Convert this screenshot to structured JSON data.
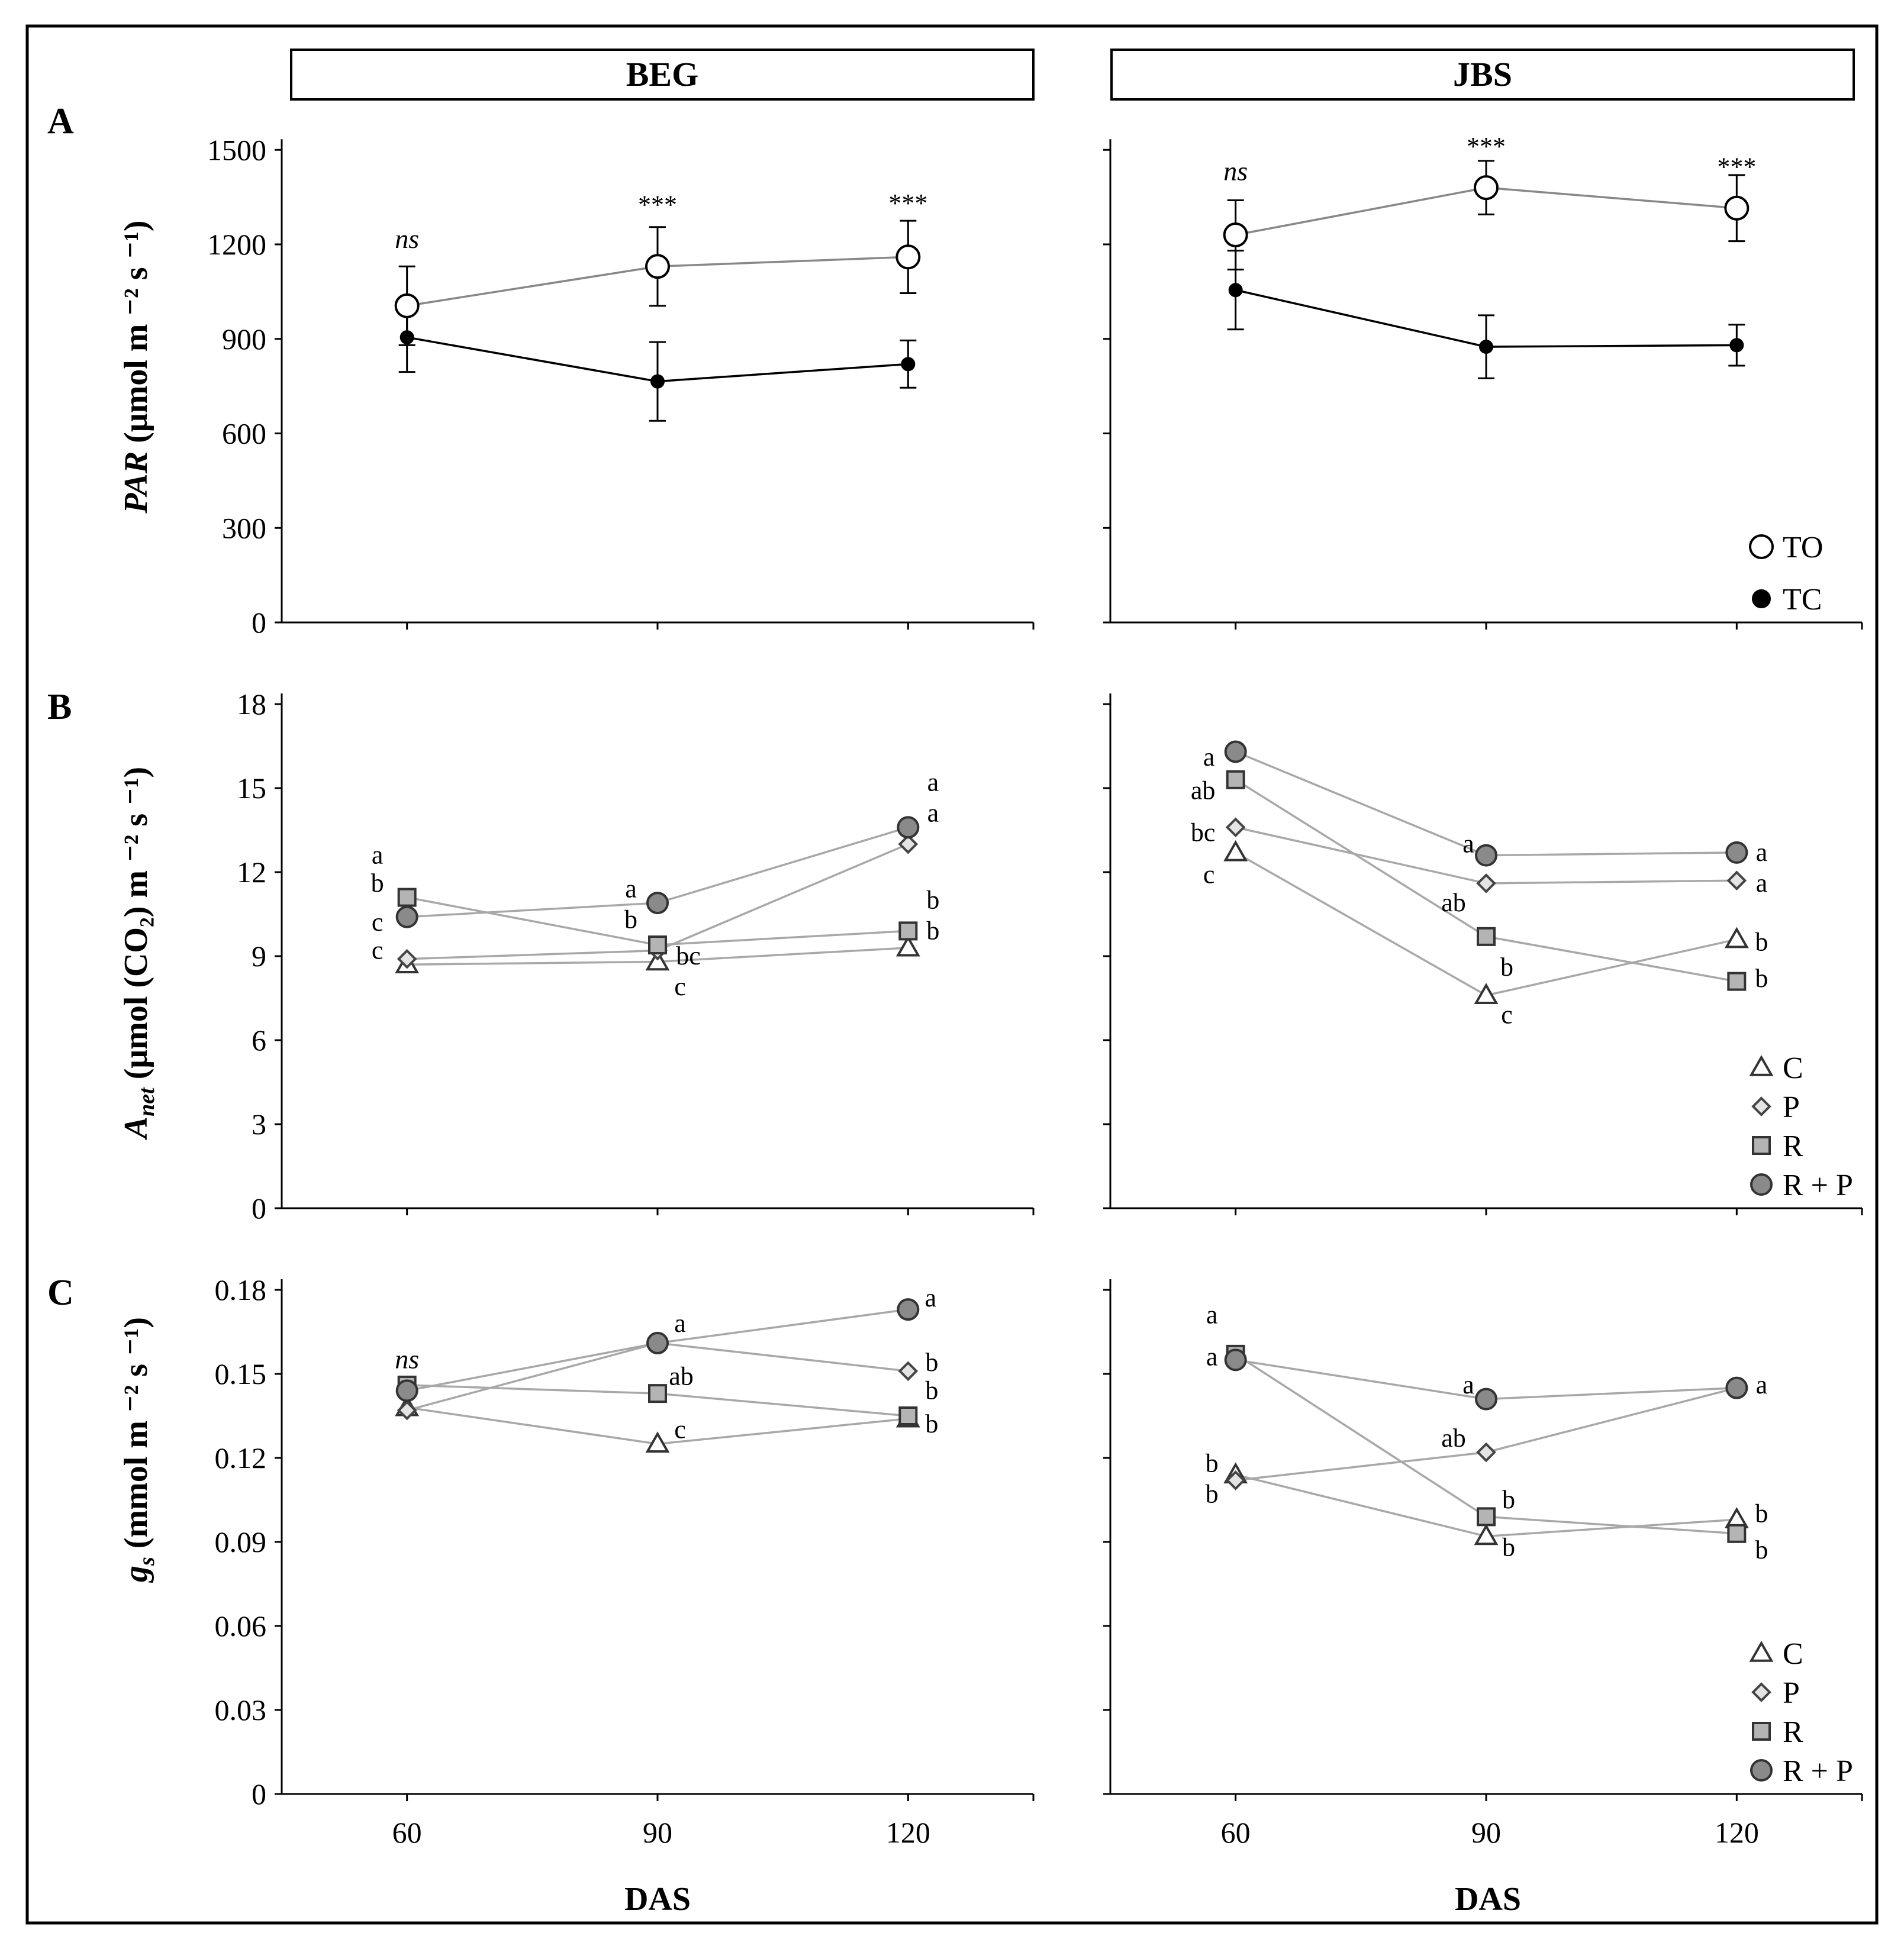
{
  "figure": {
    "columns": [
      "BEG",
      "JBS"
    ],
    "panel_letters": [
      "A",
      "B",
      "C"
    ],
    "x_title": "DAS",
    "y_titles": [
      {
        "base": "PAR",
        "rest": " (μmol m ⁻² s ⁻¹)"
      },
      {
        "base": "A",
        "sub": "net",
        "rest": " (μmol (CO₂) m ⁻² s ⁻¹)"
      },
      {
        "base": "g",
        "sub": "s",
        "rest": " (mmol m ⁻² s ⁻¹)"
      }
    ]
  },
  "colors": {
    "to_line": "#888888",
    "tc_line": "#000000",
    "treat_line": "#a8a8a8",
    "marker_grey": "#b4b4b4",
    "marker_dark": "#8a8a8a"
  },
  "chart_data": [
    {
      "id": "A-BEG",
      "type": "line",
      "row": 0,
      "col": 0,
      "x": [
        60,
        90,
        120
      ],
      "xlim": [
        45,
        135
      ],
      "ylim": [
        0,
        1600
      ],
      "yticks": [
        0,
        300,
        600,
        900,
        1200,
        1500
      ],
      "ytick_labels": [
        "0",
        "300",
        "600",
        "900",
        "1200",
        "1500"
      ],
      "series": [
        {
          "name": "TO",
          "marker": "circle-open",
          "size": "big",
          "line": "to_line",
          "values": [
            1005,
            1130,
            1160
          ],
          "errors": [
            125,
            125,
            115
          ]
        },
        {
          "name": "TC",
          "marker": "circle-filled",
          "size": "small",
          "line": "tc_line",
          "values": [
            905,
            765,
            820
          ],
          "errors": [
            110,
            125,
            75
          ]
        }
      ],
      "annotations": [
        {
          "x": 60,
          "y": 1215,
          "text": "ns",
          "style": "italic"
        },
        {
          "x": 90,
          "y": 1325,
          "text": "***",
          "style": "star"
        },
        {
          "x": 120,
          "y": 1330,
          "text": "***",
          "style": "star"
        }
      ]
    },
    {
      "id": "A-JBS",
      "type": "line",
      "row": 0,
      "col": 1,
      "x": [
        60,
        90,
        120
      ],
      "xlim": [
        45,
        135
      ],
      "ylim": [
        0,
        1600
      ],
      "yticks": [
        0,
        300,
        600,
        900,
        1200,
        1500
      ],
      "ytick_labels": [],
      "series": [
        {
          "name": "TO",
          "marker": "circle-open",
          "size": "big",
          "line": "to_line",
          "values": [
            1230,
            1380,
            1315
          ],
          "errors": [
            110,
            85,
            105
          ]
        },
        {
          "name": "TC",
          "marker": "circle-filled",
          "size": "small",
          "line": "tc_line",
          "values": [
            1055,
            875,
            880
          ],
          "errors": [
            125,
            100,
            65
          ]
        }
      ],
      "annotations": [
        {
          "x": 60,
          "y": 1430,
          "text": "ns",
          "style": "italic"
        },
        {
          "x": 90,
          "y": 1510,
          "text": "***",
          "style": "star"
        },
        {
          "x": 120,
          "y": 1445,
          "text": "***",
          "style": "star"
        }
      ],
      "legend": {
        "position": "bottom-right",
        "entries": [
          {
            "label": "TO",
            "marker": "circle-open"
          },
          {
            "label": "TC",
            "marker": "circle-filled"
          }
        ]
      }
    },
    {
      "id": "B-BEG",
      "type": "line",
      "row": 1,
      "col": 0,
      "x": [
        60,
        90,
        120
      ],
      "xlim": [
        45,
        135
      ],
      "ylim": [
        0,
        18
      ],
      "yticks": [
        0,
        3,
        6,
        9,
        12,
        15,
        18
      ],
      "ytick_labels": [
        "0",
        "3",
        "6",
        "9",
        "12",
        "15",
        "18"
      ],
      "series": [
        {
          "name": "C",
          "marker": "triangle",
          "values": [
            8.7,
            8.8,
            9.3
          ]
        },
        {
          "name": "P",
          "marker": "diamond",
          "values": [
            8.9,
            9.2,
            13.0
          ]
        },
        {
          "name": "R",
          "marker": "square",
          "values": [
            11.1,
            9.4,
            9.9
          ]
        },
        {
          "name": "R + P",
          "marker": "circle-grey",
          "values": [
            10.4,
            10.9,
            13.6
          ]
        }
      ],
      "annotations": [
        {
          "x": 60,
          "y": 12.6,
          "text": "a",
          "dx": -50
        },
        {
          "x": 60,
          "y": 11.6,
          "text": "b",
          "dx": -50
        },
        {
          "x": 60,
          "y": 10.2,
          "text": "c",
          "dx": -50
        },
        {
          "x": 60,
          "y": 9.2,
          "text": "c",
          "dx": -50
        },
        {
          "x": 90,
          "y": 11.4,
          "text": "a",
          "dx": -45
        },
        {
          "x": 90,
          "y": 10.3,
          "text": "b",
          "dx": -45
        },
        {
          "x": 90,
          "y": 9.0,
          "text": "bc",
          "dx": 52
        },
        {
          "x": 90,
          "y": 7.9,
          "text": "c",
          "dx": 38
        },
        {
          "x": 120,
          "y": 15.2,
          "text": "a",
          "dx": 42
        },
        {
          "x": 120,
          "y": 14.1,
          "text": "a",
          "dx": 42
        },
        {
          "x": 120,
          "y": 11.0,
          "text": "b",
          "dx": 42
        },
        {
          "x": 120,
          "y": 9.9,
          "text": "b",
          "dx": 42
        }
      ]
    },
    {
      "id": "B-JBS",
      "type": "line",
      "row": 1,
      "col": 1,
      "x": [
        60,
        90,
        120
      ],
      "xlim": [
        45,
        135
      ],
      "ylim": [
        0,
        18
      ],
      "yticks": [
        0,
        3,
        6,
        9,
        12,
        15,
        18
      ],
      "ytick_labels": [],
      "series": [
        {
          "name": "C",
          "marker": "triangle",
          "values": [
            12.7,
            7.6,
            9.6
          ]
        },
        {
          "name": "P",
          "marker": "diamond",
          "values": [
            13.6,
            11.6,
            11.7
          ]
        },
        {
          "name": "R",
          "marker": "square",
          "values": [
            15.3,
            9.7,
            8.1
          ]
        },
        {
          "name": "R + P",
          "marker": "circle-grey",
          "values": [
            16.3,
            12.6,
            12.7
          ]
        }
      ],
      "annotations": [
        {
          "x": 60,
          "y": 16.1,
          "text": "a",
          "dx": -45
        },
        {
          "x": 60,
          "y": 14.9,
          "text": "ab",
          "dx": -55
        },
        {
          "x": 60,
          "y": 13.4,
          "text": "bc",
          "dx": -55
        },
        {
          "x": 60,
          "y": 11.9,
          "text": "c",
          "dx": -45
        },
        {
          "x": 90,
          "y": 13.0,
          "text": "a",
          "dx": -30
        },
        {
          "x": 90,
          "y": 10.9,
          "text": "ab",
          "dx": -55
        },
        {
          "x": 90,
          "y": 8.6,
          "text": "b",
          "dx": 35
        },
        {
          "x": 90,
          "y": 6.9,
          "text": "c",
          "dx": 35
        },
        {
          "x": 120,
          "y": 12.7,
          "text": "a",
          "dx": 42
        },
        {
          "x": 120,
          "y": 11.6,
          "text": "a",
          "dx": 42
        },
        {
          "x": 120,
          "y": 9.5,
          "text": "b",
          "dx": 42
        },
        {
          "x": 120,
          "y": 8.2,
          "text": "b",
          "dx": 42
        }
      ],
      "legend": {
        "position": "bottom-right",
        "entries": [
          {
            "label": "C",
            "marker": "triangle"
          },
          {
            "label": "P",
            "marker": "diamond"
          },
          {
            "label": "R",
            "marker": "square"
          },
          {
            "label": "R + P",
            "marker": "circle-grey"
          }
        ]
      }
    },
    {
      "id": "C-BEG",
      "type": "line",
      "row": 2,
      "col": 0,
      "x": [
        60,
        90,
        120
      ],
      "xlim": [
        45,
        135
      ],
      "ylim": [
        0,
        0.18
      ],
      "yticks": [
        0,
        0.03,
        0.06,
        0.09,
        0.12,
        0.15,
        0.18
      ],
      "ytick_labels": [
        "0",
        "0.03",
        "0.06",
        "0.09",
        "0.12",
        "0.15",
        "0.18"
      ],
      "xtick_labels": [
        "60",
        "90",
        "120"
      ],
      "series": [
        {
          "name": "C",
          "marker": "triangle",
          "values": [
            0.138,
            0.125,
            0.134
          ]
        },
        {
          "name": "P",
          "marker": "diamond",
          "values": [
            0.137,
            0.161,
            0.151
          ]
        },
        {
          "name": "R",
          "marker": "square",
          "values": [
            0.146,
            0.143,
            0.135
          ]
        },
        {
          "name": "R + P",
          "marker": "circle-grey",
          "values": [
            0.144,
            0.161,
            0.173
          ]
        }
      ],
      "annotations": [
        {
          "x": 60,
          "y": 0.155,
          "text": "ns",
          "style": "italic"
        },
        {
          "x": 90,
          "y": 0.168,
          "text": "a",
          "dx": 38
        },
        {
          "x": 90,
          "y": 0.149,
          "text": "ab",
          "dx": 40
        },
        {
          "x": 90,
          "y": 0.13,
          "text": "c",
          "dx": 38
        },
        {
          "x": 120,
          "y": 0.177,
          "text": "a",
          "dx": 38
        },
        {
          "x": 120,
          "y": 0.154,
          "text": "b",
          "dx": 40
        },
        {
          "x": 120,
          "y": 0.144,
          "text": "b",
          "dx": 40
        },
        {
          "x": 120,
          "y": 0.132,
          "text": "b",
          "dx": 40
        }
      ]
    },
    {
      "id": "C-JBS",
      "type": "line",
      "row": 2,
      "col": 1,
      "x": [
        60,
        90,
        120
      ],
      "xlim": [
        45,
        135
      ],
      "ylim": [
        0,
        0.18
      ],
      "yticks": [
        0,
        0.03,
        0.06,
        0.09,
        0.12,
        0.15,
        0.18
      ],
      "ytick_labels": [],
      "xtick_labels": [
        "60",
        "90",
        "120"
      ],
      "series": [
        {
          "name": "C",
          "marker": "triangle",
          "values": [
            0.114,
            0.092,
            0.098
          ]
        },
        {
          "name": "P",
          "marker": "diamond",
          "values": [
            0.112,
            0.122,
            0.145
          ]
        },
        {
          "name": "R",
          "marker": "square",
          "values": [
            0.157,
            0.099,
            0.093
          ]
        },
        {
          "name": "R + P",
          "marker": "circle-grey",
          "values": [
            0.155,
            0.141,
            0.145
          ]
        }
      ],
      "annotations": [
        {
          "x": 60,
          "y": 0.171,
          "text": "a",
          "dx": -40
        },
        {
          "x": 60,
          "y": 0.156,
          "text": "a",
          "dx": -40
        },
        {
          "x": 60,
          "y": 0.118,
          "text": "b",
          "dx": -40
        },
        {
          "x": 60,
          "y": 0.107,
          "text": "b",
          "dx": -40
        },
        {
          "x": 90,
          "y": 0.146,
          "text": "a",
          "dx": -30
        },
        {
          "x": 90,
          "y": 0.127,
          "text": "ab",
          "dx": -55
        },
        {
          "x": 90,
          "y": 0.105,
          "text": "b",
          "dx": 38
        },
        {
          "x": 90,
          "y": 0.088,
          "text": "b",
          "dx": 38
        },
        {
          "x": 120,
          "y": 0.146,
          "text": "a",
          "dx": 42
        },
        {
          "x": 120,
          "y": 0.1,
          "text": "b",
          "dx": 42
        },
        {
          "x": 120,
          "y": 0.087,
          "text": "b",
          "dx": 42
        }
      ],
      "legend": {
        "position": "bottom-right",
        "entries": [
          {
            "label": "C",
            "marker": "triangle"
          },
          {
            "label": "P",
            "marker": "diamond"
          },
          {
            "label": "R",
            "marker": "square"
          },
          {
            "label": "R + P",
            "marker": "circle-grey"
          }
        ]
      }
    }
  ]
}
